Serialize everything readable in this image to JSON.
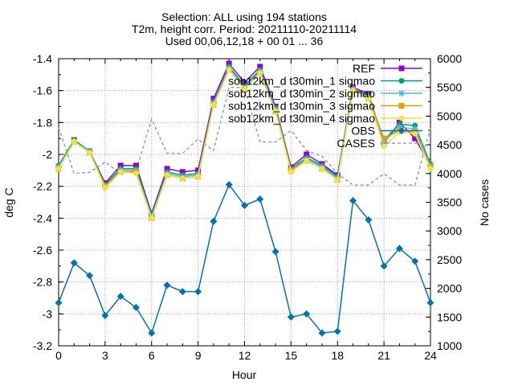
{
  "chart_data": {
    "type": "line",
    "title": [
      "Selection: ALL using   194 stations",
      "T2m, height corr.   Period: 20211110-20211114",
      "Used 00,06,12,18 + 00 01 ... 36"
    ],
    "xlabel": "Hour",
    "ylabel": "deg C",
    "y2label": "No cases",
    "xlim": [
      0,
      24
    ],
    "ylim": [
      -3.2,
      -1.4
    ],
    "y2lim": [
      1000,
      6000
    ],
    "xticks": [
      "0",
      "3",
      "6",
      "9",
      "12",
      "15",
      "18",
      "21",
      "24"
    ],
    "yticks": [
      "-1.4",
      "-1.6",
      "-1.8",
      "-2",
      "-2.2",
      "-2.4",
      "-2.6",
      "-2.8",
      "-3",
      "-3.2"
    ],
    "y2ticks": [
      "6000",
      "5500",
      "5000",
      "4500",
      "4000",
      "3500",
      "3000",
      "2500",
      "2000",
      "1500",
      "1000"
    ],
    "grid": true,
    "legend_position": "top-right",
    "x": [
      0,
      1,
      2,
      3,
      4,
      5,
      6,
      7,
      8,
      9,
      10,
      11,
      12,
      13,
      14,
      15,
      16,
      17,
      18,
      19,
      20,
      21,
      22,
      23,
      24
    ],
    "series": [
      {
        "name": "REF",
        "color": "#9400d3",
        "marker": "square",
        "axis": "y",
        "values": [
          -2.08,
          -1.91,
          -1.98,
          -2.18,
          -2.07,
          -2.07,
          -2.37,
          -2.09,
          -2.11,
          -2.1,
          -1.65,
          -1.43,
          -1.55,
          -1.45,
          -1.7,
          -2.08,
          -2.0,
          -2.06,
          -2.13,
          -1.58,
          -1.62,
          -1.93,
          -1.8,
          -1.9,
          -2.07
        ]
      },
      {
        "name": "sob12km_d t30min_1 sigmao",
        "color": "#009e73",
        "marker": "circle",
        "axis": "y",
        "values": [
          -2.07,
          -1.91,
          -1.98,
          -2.19,
          -2.09,
          -2.09,
          -2.38,
          -2.11,
          -2.13,
          -2.12,
          -1.67,
          -1.45,
          -1.57,
          -1.47,
          -1.71,
          -2.09,
          -2.02,
          -2.07,
          -2.14,
          -1.59,
          -1.63,
          -1.91,
          -1.81,
          -1.82,
          -2.06
        ]
      },
      {
        "name": "sob12km_d t30min_2 sigmao",
        "color": "#56b4e9",
        "marker": "star",
        "axis": "y",
        "values": [
          -2.08,
          -1.92,
          -1.98,
          -2.2,
          -2.1,
          -2.1,
          -2.39,
          -2.12,
          -2.14,
          -2.13,
          -1.68,
          -1.46,
          -1.58,
          -1.48,
          -1.72,
          -2.1,
          -2.03,
          -2.08,
          -2.15,
          -1.59,
          -1.64,
          -1.92,
          -1.83,
          -1.84,
          -2.07
        ]
      },
      {
        "name": "sob12km_d t30min_3 sigmao",
        "color": "#e69f00",
        "marker": "square",
        "axis": "y",
        "values": [
          -2.09,
          -1.92,
          -1.99,
          -2.2,
          -2.11,
          -2.11,
          -2.4,
          -2.13,
          -2.15,
          -2.14,
          -1.69,
          -1.47,
          -1.59,
          -1.49,
          -1.73,
          -2.1,
          -2.04,
          -2.09,
          -2.16,
          -1.6,
          -1.65,
          -1.9,
          -1.85,
          -1.86,
          -2.08
        ]
      },
      {
        "name": "sob12km_d t30min_4 sigmao",
        "color": "#f0e442",
        "marker": "circle",
        "axis": "y",
        "values": [
          -2.09,
          -1.92,
          -1.99,
          -2.21,
          -2.11,
          -2.12,
          -2.4,
          -2.13,
          -2.15,
          -2.14,
          -1.69,
          -1.47,
          -1.59,
          -1.49,
          -1.73,
          -2.11,
          -2.04,
          -2.09,
          -2.16,
          -1.6,
          -1.65,
          -1.95,
          -1.86,
          -1.87,
          -2.09
        ]
      },
      {
        "name": "OBS",
        "color": "#0072b2",
        "marker": "diamond",
        "axis": "y",
        "values": [
          -2.93,
          -2.68,
          -2.76,
          -3.01,
          -2.89,
          -2.96,
          -3.12,
          -2.82,
          -2.86,
          -2.86,
          -2.42,
          -2.19,
          -2.32,
          -2.28,
          -2.61,
          -3.02,
          -3.0,
          -3.12,
          -3.11,
          -2.29,
          -2.41,
          -2.7,
          -2.59,
          -2.67,
          -2.93
        ]
      },
      {
        "name": "CASES",
        "color": "#a0a0a0",
        "marker": "none",
        "dashed": true,
        "axis": "y2",
        "values": [
          4800,
          4000,
          4020,
          4200,
          4000,
          4050,
          4950,
          4350,
          4350,
          4600,
          4400,
          5500,
          5500,
          4550,
          4550,
          4750,
          4400,
          4300,
          4000,
          3800,
          3800,
          4000,
          3800,
          3800,
          4800
        ]
      }
    ]
  }
}
